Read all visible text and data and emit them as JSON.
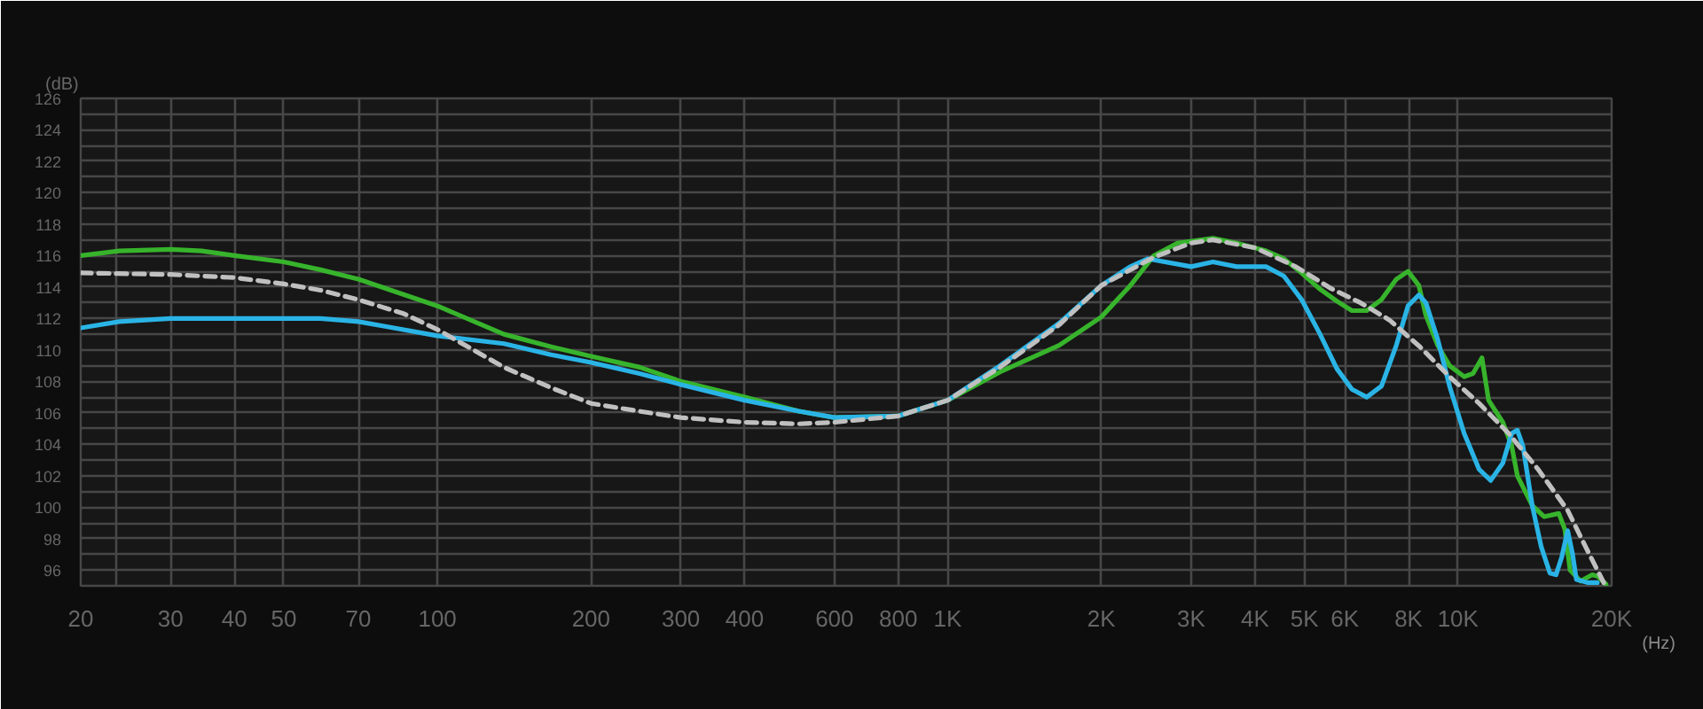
{
  "chart_data": {
    "type": "line",
    "xlabel": "(Hz)",
    "ylabel": "(dB)",
    "log": "x",
    "grid": true,
    "xlim": [
      20,
      20000
    ],
    "ylim": [
      95,
      126
    ],
    "xticks": [
      20,
      {
        "value": 23.5,
        "label": null
      },
      30,
      40,
      50,
      70,
      100,
      200,
      300,
      400,
      600,
      800,
      {
        "value": 1000,
        "label": "1K"
      },
      {
        "value": 2000,
        "label": "2K"
      },
      {
        "value": 3000,
        "label": "3K"
      },
      {
        "value": 4000,
        "label": "4K"
      },
      {
        "value": 5000,
        "label": "5K"
      },
      {
        "value": 6000,
        "label": "6K"
      },
      {
        "value": 8000,
        "label": "8K"
      },
      {
        "value": 10000,
        "label": "10K"
      },
      {
        "value": 20000,
        "label": "20K"
      }
    ],
    "yticks": [
      {
        "value": 95,
        "label": null
      },
      96,
      {
        "value": 97,
        "label": null
      },
      98,
      {
        "value": 99,
        "label": null
      },
      100,
      {
        "value": 101,
        "label": null
      },
      102,
      {
        "value": 103,
        "label": null
      },
      104,
      {
        "value": 105,
        "label": null
      },
      106,
      {
        "value": 107,
        "label": null
      },
      108,
      {
        "value": 109,
        "label": null
      },
      110,
      {
        "value": 111,
        "label": null
      },
      112,
      {
        "value": 113,
        "label": null
      },
      114,
      {
        "value": 115,
        "label": null
      },
      116,
      {
        "value": 117,
        "label": null
      },
      118,
      {
        "value": 119,
        "label": null
      },
      120,
      {
        "value": 121,
        "label": null
      },
      122,
      {
        "value": 123,
        "label": null
      },
      124,
      {
        "value": 125,
        "label": null
      },
      126
    ],
    "series": [
      {
        "color": "#37b42c",
        "line_style": "solid",
        "x": [
          20,
          23.8,
          30,
          34.5,
          40,
          50,
          59,
          70,
          100,
          135,
          167,
          200,
          249,
          300,
          400,
          511,
          600,
          800,
          1000,
          1266,
          1654,
          2000,
          2280,
          2535,
          2820,
          3310,
          3682,
          4205,
          4558,
          4937,
          5347,
          5790,
          6196,
          6623,
          7080,
          7570,
          7980,
          8380,
          8650,
          9120,
          9625,
          10280,
          10700,
          11140,
          11480,
          12240,
          12740,
          13070,
          13980,
          14740,
          15760,
          16190,
          16580,
          17380,
          18320,
          18780,
          19500
        ],
        "values": [
          116.0,
          116.3,
          116.4,
          116.3,
          116.0,
          115.6,
          115.1,
          114.5,
          112.8,
          111.0,
          110.2,
          109.6,
          108.9,
          108.0,
          107.0,
          106.1,
          105.7,
          105.8,
          106.8,
          108.6,
          110.3,
          112.1,
          114.1,
          116.0,
          116.8,
          117.1,
          116.8,
          116.3,
          115.8,
          114.9,
          113.9,
          113.1,
          112.5,
          112.5,
          113.2,
          114.5,
          115.0,
          114.1,
          112.2,
          110.3,
          109.0,
          108.3,
          108.5,
          109.5,
          106.8,
          105.4,
          103.9,
          102.0,
          100.1,
          99.4,
          99.6,
          98.6,
          96.0,
          95.3,
          95.7,
          95.6,
          95.1
        ]
      },
      {
        "color": "#2ab4e6",
        "line_style": "solid",
        "x": [
          20,
          23.8,
          30,
          40,
          59,
          70,
          79,
          100,
          135,
          167,
          200,
          249,
          300,
          400,
          511,
          600,
          800,
          1000,
          1266,
          1654,
          2000,
          2280,
          2468,
          3000,
          3310,
          3682,
          4205,
          4558,
          4937,
          5347,
          5790,
          6196,
          6623,
          7080,
          7570,
          7980,
          8380,
          8650,
          9120,
          9625,
          10280,
          11000,
          11590,
          12240,
          12740,
          13070,
          13400,
          13980,
          14550,
          15140,
          15560,
          15960,
          16400,
          16750,
          17060,
          17980,
          18750
        ],
        "values": [
          111.4,
          111.8,
          112.0,
          112.0,
          112.0,
          111.8,
          111.5,
          110.9,
          110.4,
          109.7,
          109.2,
          108.5,
          107.8,
          106.8,
          106.1,
          105.7,
          105.8,
          106.8,
          109.0,
          111.7,
          114.1,
          115.3,
          115.8,
          115.3,
          115.6,
          115.3,
          115.3,
          114.7,
          113.2,
          111.1,
          108.8,
          107.5,
          107.0,
          107.7,
          110.3,
          112.8,
          113.5,
          113.0,
          110.7,
          107.7,
          104.7,
          102.4,
          101.7,
          102.8,
          104.7,
          104.9,
          103.9,
          100.1,
          97.5,
          95.8,
          95.7,
          96.8,
          98.5,
          97.1,
          95.4,
          95.2,
          95.2
        ]
      },
      {
        "color": "#c0c0c0",
        "line_style": "dashed",
        "x": [
          20,
          30,
          40,
          50,
          59,
          70,
          86,
          100,
          135,
          167,
          200,
          249,
          300,
          400,
          511,
          600,
          800,
          1000,
          1266,
          1654,
          2000,
          2535,
          3000,
          3310,
          4000,
          4808,
          5645,
          6443,
          7340,
          8420,
          9625,
          11000,
          12560,
          14360,
          16400,
          17770,
          19300
        ],
        "values": [
          114.9,
          114.8,
          114.6,
          114.2,
          113.8,
          113.2,
          112.3,
          111.3,
          108.9,
          107.6,
          106.6,
          106.1,
          105.7,
          105.4,
          105.3,
          105.4,
          105.8,
          106.8,
          108.9,
          111.6,
          114.1,
          115.9,
          116.8,
          117.0,
          116.5,
          115.3,
          113.9,
          113.0,
          111.9,
          110.2,
          108.3,
          106.6,
          104.7,
          102.4,
          99.8,
          97.5,
          95.2
        ]
      }
    ]
  }
}
